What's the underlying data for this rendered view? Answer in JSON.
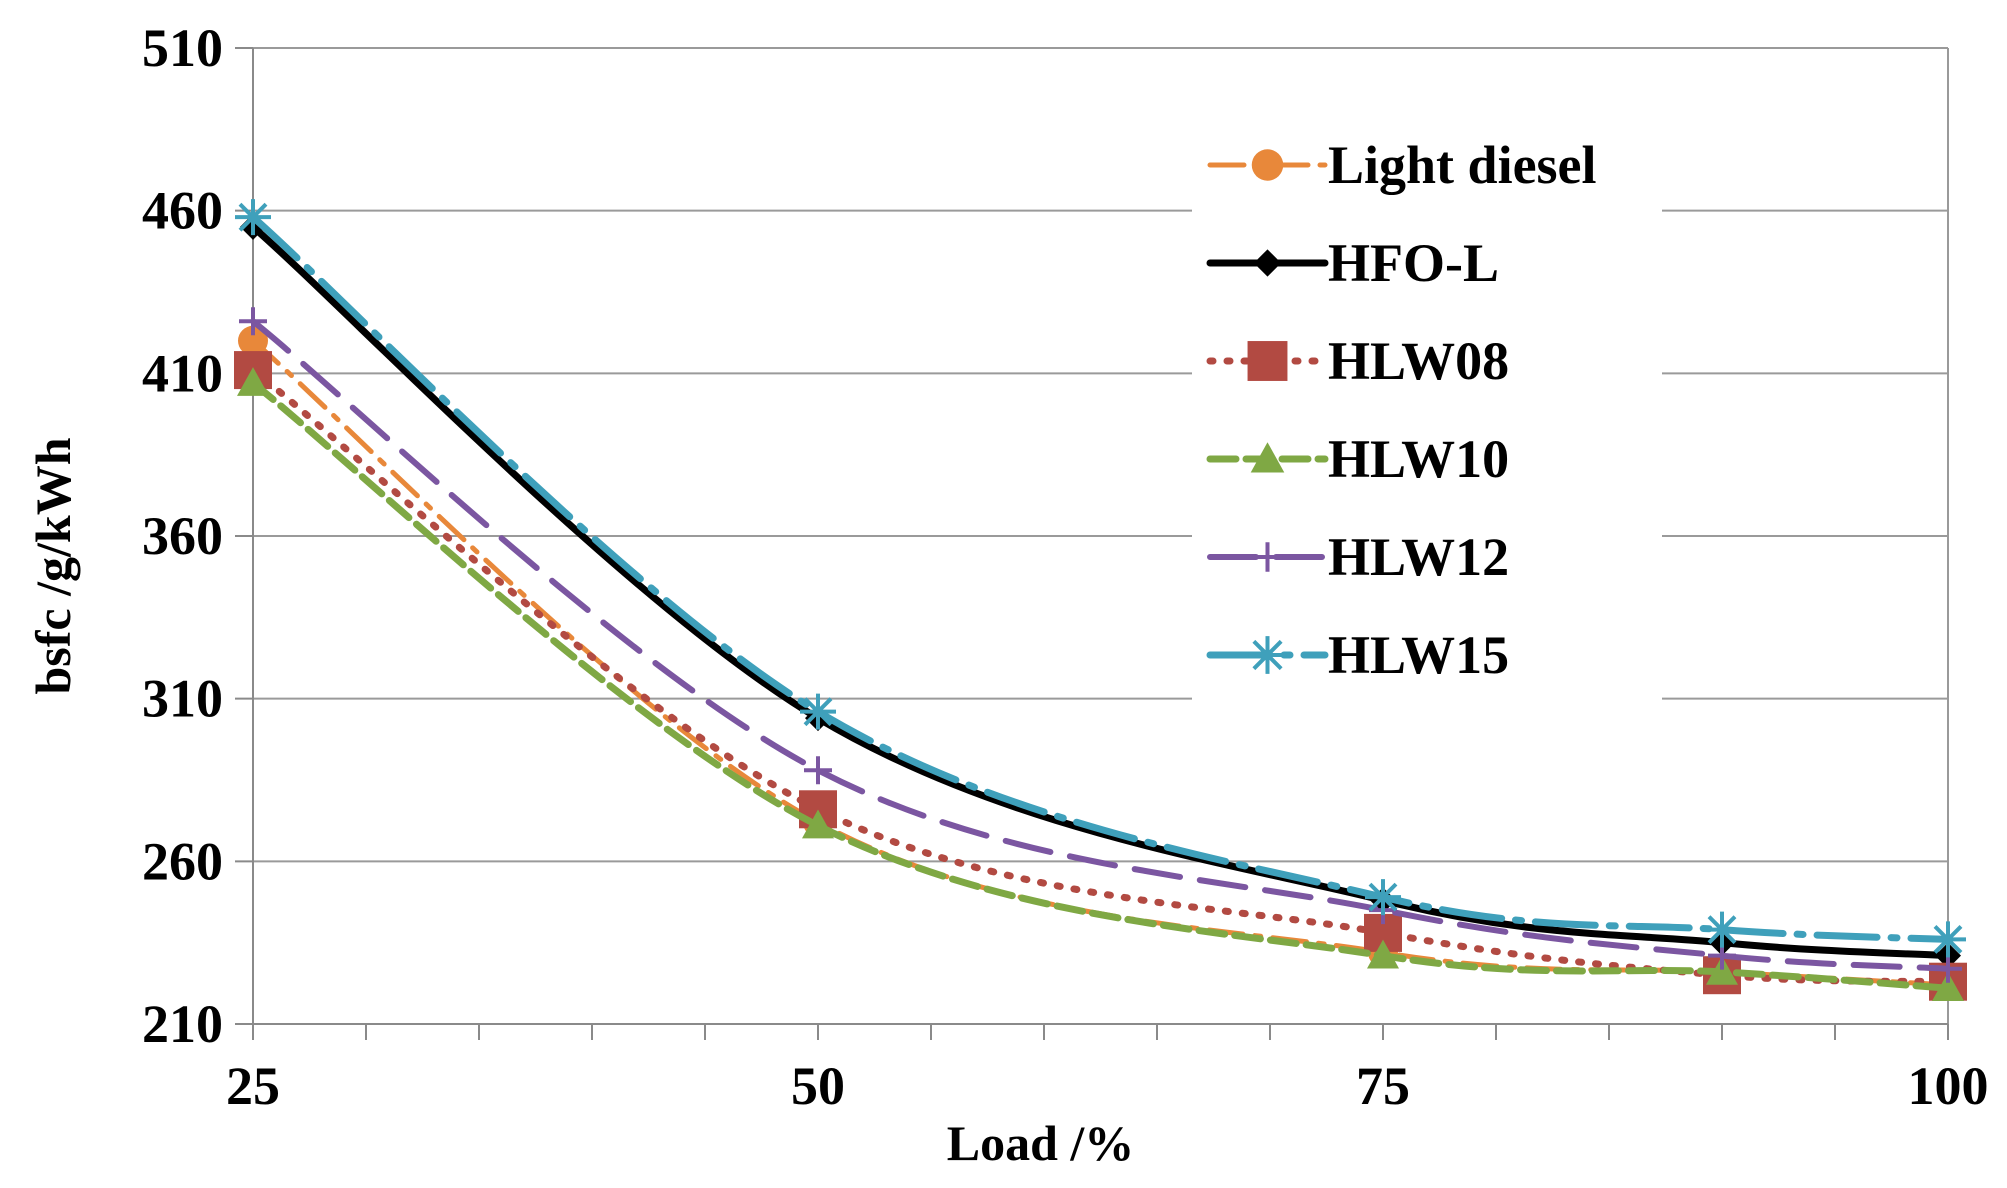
{
  "chart_data": {
    "type": "line",
    "title": "",
    "xlabel": "Load /%",
    "ylabel": "bsfc /g/kWh",
    "xlim": [
      25,
      100
    ],
    "ylim": [
      210,
      510
    ],
    "xticks": [
      25,
      50,
      75,
      100
    ],
    "yticks": [
      210,
      260,
      310,
      360,
      410,
      460,
      510
    ],
    "x_minor_step": 5,
    "grid": "horizontal",
    "legend_position": "top-right",
    "series": [
      {
        "name": "Light diesel",
        "color": "#E8883A",
        "dash": "34 12 6 12",
        "stroke_width": 5,
        "marker": "circle",
        "x": [
          25,
          50,
          75,
          90,
          100
        ],
        "values": [
          420,
          272,
          232,
          226,
          222
        ]
      },
      {
        "name": "HFO-L",
        "color": "#000000",
        "dash": "",
        "stroke_width": 7,
        "marker": "diamond",
        "x": [
          25,
          50,
          75,
          90,
          100
        ],
        "values": [
          455,
          304,
          248,
          235,
          231
        ]
      },
      {
        "name": "HLW08",
        "color": "#B24A42",
        "dash": "3 14",
        "stroke_width": 7,
        "marker": "square",
        "x": [
          25,
          50,
          75,
          90,
          100
        ],
        "values": [
          411,
          276,
          238,
          225,
          223
        ]
      },
      {
        "name": "HLW10",
        "color": "#7FA844",
        "dash": "26 10",
        "stroke_width": 7,
        "marker": "triangle",
        "x": [
          25,
          50,
          75,
          90,
          100
        ],
        "values": [
          407,
          271,
          231,
          226,
          221
        ]
      },
      {
        "name": "HLW12",
        "color": "#7B56A1",
        "dash": "46 20",
        "stroke_width": 6,
        "marker": "plus",
        "x": [
          25,
          50,
          75,
          90,
          100
        ],
        "values": [
          426,
          288,
          245,
          231,
          227
        ]
      },
      {
        "name": "HLW15",
        "color": "#3FA0BB",
        "dash": "60 14 6 14",
        "stroke_width": 7,
        "marker": "star",
        "x": [
          25,
          50,
          75,
          90,
          100
        ],
        "values": [
          458,
          306,
          249,
          239,
          236
        ]
      }
    ]
  }
}
